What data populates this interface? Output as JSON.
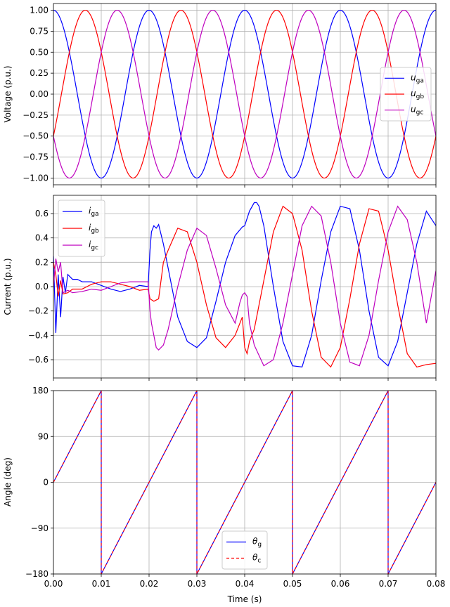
{
  "chart_data": [
    {
      "type": "line",
      "ylabel": "Voltage (p.u.)",
      "xlim": [
        0,
        0.08
      ],
      "ylim": [
        -1.08,
        1.08
      ],
      "yticks": [
        "1.00",
        "0.75",
        "0.50",
        "0.25",
        "0.00",
        "−0.25",
        "−0.50",
        "−0.75",
        "−1.00"
      ],
      "grid": true,
      "legend_position": "right",
      "series": [
        {
          "name": "u",
          "sub": "ga",
          "color": "#0000ff",
          "amplitude": 1.0,
          "frequency_hz": 50,
          "phase_deg": 0
        },
        {
          "name": "u",
          "sub": "gb",
          "color": "#ff0000",
          "amplitude": 1.0,
          "frequency_hz": 50,
          "phase_deg": -120
        },
        {
          "name": "u",
          "sub": "gc",
          "color": "#bf00bf",
          "amplitude": 1.0,
          "frequency_hz": 50,
          "phase_deg": 120
        }
      ]
    },
    {
      "type": "line",
      "ylabel": "Current (p.u.)",
      "xlim": [
        0,
        0.08
      ],
      "ylim": [
        -0.75,
        0.75
      ],
      "yticks": [
        "0.6",
        "0.4",
        "0.2",
        "0.0",
        "−0.2",
        "−0.4",
        "−0.6"
      ],
      "grid": true,
      "legend_position": "top-left",
      "series": [
        {
          "name": "i",
          "sub": "ga",
          "color": "#0000ff",
          "x": [
            0,
            0.0005,
            0.001,
            0.0015,
            0.002,
            0.0025,
            0.003,
            0.004,
            0.005,
            0.006,
            0.008,
            0.01,
            0.012,
            0.014,
            0.016,
            0.018,
            0.0198,
            0.0202,
            0.0205,
            0.021,
            0.0215,
            0.022,
            0.023,
            0.024,
            0.026,
            0.028,
            0.03,
            0.032,
            0.034,
            0.036,
            0.038,
            0.0395,
            0.04,
            0.041,
            0.042,
            0.0425,
            0.043,
            0.044,
            0.046,
            0.048,
            0.05,
            0.052,
            0.054,
            0.056,
            0.058,
            0.06,
            0.062,
            0.064,
            0.066,
            0.068,
            0.07,
            0.072,
            0.074,
            0.076,
            0.078,
            0.08
          ],
          "y": [
            0.25,
            -0.38,
            0.1,
            -0.25,
            0.08,
            -0.05,
            0.1,
            0.06,
            0.06,
            0.04,
            0.04,
            0.01,
            -0.02,
            -0.04,
            -0.02,
            0.01,
            0.0,
            0.3,
            0.45,
            0.5,
            0.48,
            0.51,
            0.35,
            0.15,
            -0.25,
            -0.45,
            -0.5,
            -0.42,
            -0.12,
            0.2,
            0.42,
            0.49,
            0.5,
            0.62,
            0.69,
            0.69,
            0.66,
            0.5,
            0.0,
            -0.45,
            -0.65,
            -0.66,
            -0.4,
            0.05,
            0.45,
            0.66,
            0.64,
            0.3,
            -0.2,
            -0.58,
            -0.65,
            -0.45,
            -0.05,
            0.35,
            0.62,
            0.5
          ]
        },
        {
          "name": "i",
          "sub": "gb",
          "color": "#ff0000",
          "x": [
            0,
            0.0005,
            0.001,
            0.0015,
            0.002,
            0.003,
            0.004,
            0.006,
            0.008,
            0.01,
            0.012,
            0.014,
            0.016,
            0.018,
            0.0198,
            0.0202,
            0.021,
            0.022,
            0.023,
            0.024,
            0.026,
            0.028,
            0.03,
            0.032,
            0.034,
            0.036,
            0.038,
            0.039,
            0.0395,
            0.04,
            0.0405,
            0.041,
            0.042,
            0.044,
            0.046,
            0.048,
            0.05,
            0.052,
            0.054,
            0.056,
            0.058,
            0.06,
            0.062,
            0.064,
            0.066,
            0.068,
            0.07,
            0.072,
            0.074,
            0.076,
            0.078,
            0.08
          ],
          "y": [
            0.2,
            0.1,
            -0.08,
            0.05,
            -0.06,
            -0.05,
            -0.02,
            -0.02,
            0.02,
            0.04,
            0.04,
            0.02,
            0.0,
            -0.03,
            -0.02,
            -0.1,
            -0.12,
            -0.1,
            0.2,
            0.3,
            0.48,
            0.45,
            0.2,
            -0.15,
            -0.42,
            -0.5,
            -0.4,
            -0.3,
            -0.25,
            -0.5,
            -0.55,
            -0.45,
            -0.35,
            0.05,
            0.45,
            0.66,
            0.6,
            0.3,
            -0.2,
            -0.58,
            -0.66,
            -0.5,
            -0.1,
            0.35,
            0.64,
            0.62,
            0.3,
            -0.15,
            -0.55,
            -0.66,
            -0.64,
            -0.63
          ]
        },
        {
          "name": "i",
          "sub": "gc",
          "color": "#bf00bf",
          "x": [
            0,
            0.0005,
            0.001,
            0.0015,
            0.002,
            0.003,
            0.004,
            0.006,
            0.008,
            0.01,
            0.012,
            0.014,
            0.016,
            0.018,
            0.0198,
            0.0202,
            0.0205,
            0.021,
            0.0215,
            0.022,
            0.023,
            0.024,
            0.026,
            0.028,
            0.03,
            0.032,
            0.034,
            0.036,
            0.038,
            0.039,
            0.0395,
            0.04,
            0.0405,
            0.041,
            0.042,
            0.044,
            0.046,
            0.048,
            0.05,
            0.052,
            0.054,
            0.056,
            0.058,
            0.06,
            0.062,
            0.064,
            0.066,
            0.068,
            0.07,
            0.072,
            0.074,
            0.076,
            0.078,
            0.08
          ],
          "y": [
            0.0,
            0.23,
            0.12,
            0.2,
            -0.05,
            -0.03,
            -0.05,
            -0.04,
            -0.02,
            -0.03,
            0.0,
            0.03,
            0.04,
            0.04,
            0.04,
            -0.2,
            -0.3,
            -0.4,
            -0.5,
            -0.52,
            -0.48,
            -0.35,
            0.0,
            0.3,
            0.48,
            0.42,
            0.15,
            -0.15,
            -0.3,
            -0.13,
            -0.07,
            -0.05,
            -0.08,
            -0.3,
            -0.48,
            -0.65,
            -0.6,
            -0.3,
            0.1,
            0.5,
            0.66,
            0.58,
            0.2,
            -0.3,
            -0.62,
            -0.65,
            -0.4,
            0.05,
            0.45,
            0.66,
            0.55,
            0.2,
            -0.3,
            0.13
          ]
        }
      ]
    },
    {
      "type": "line",
      "ylabel": "Angle (deg)",
      "xlabel": "Time (s)",
      "xlim": [
        0,
        0.08
      ],
      "ylim": [
        -180,
        180
      ],
      "xticks": [
        "0.00",
        "0.01",
        "0.02",
        "0.03",
        "0.04",
        "0.05",
        "0.06",
        "0.07",
        "0.08"
      ],
      "yticks": [
        "180",
        "90",
        "0",
        "−90",
        "−180"
      ],
      "grid": true,
      "legend_position": "bottom-center",
      "series": [
        {
          "name": "θ",
          "sub": "g",
          "color": "#0000ff",
          "style": "solid",
          "x": [
            0,
            0.01,
            0.01,
            0.03,
            0.03,
            0.05,
            0.05,
            0.07,
            0.07,
            0.08
          ],
          "y": [
            0,
            180,
            -180,
            180,
            -180,
            180,
            -180,
            180,
            -180,
            0
          ]
        },
        {
          "name": "θ",
          "sub": "c",
          "color": "#ff0000",
          "style": "dashed",
          "x": [
            0,
            0.01,
            0.01,
            0.03,
            0.03,
            0.05,
            0.05,
            0.07,
            0.07,
            0.08
          ],
          "y": [
            0,
            180,
            -180,
            180,
            -180,
            180,
            -180,
            180,
            -180,
            0
          ]
        }
      ]
    }
  ]
}
